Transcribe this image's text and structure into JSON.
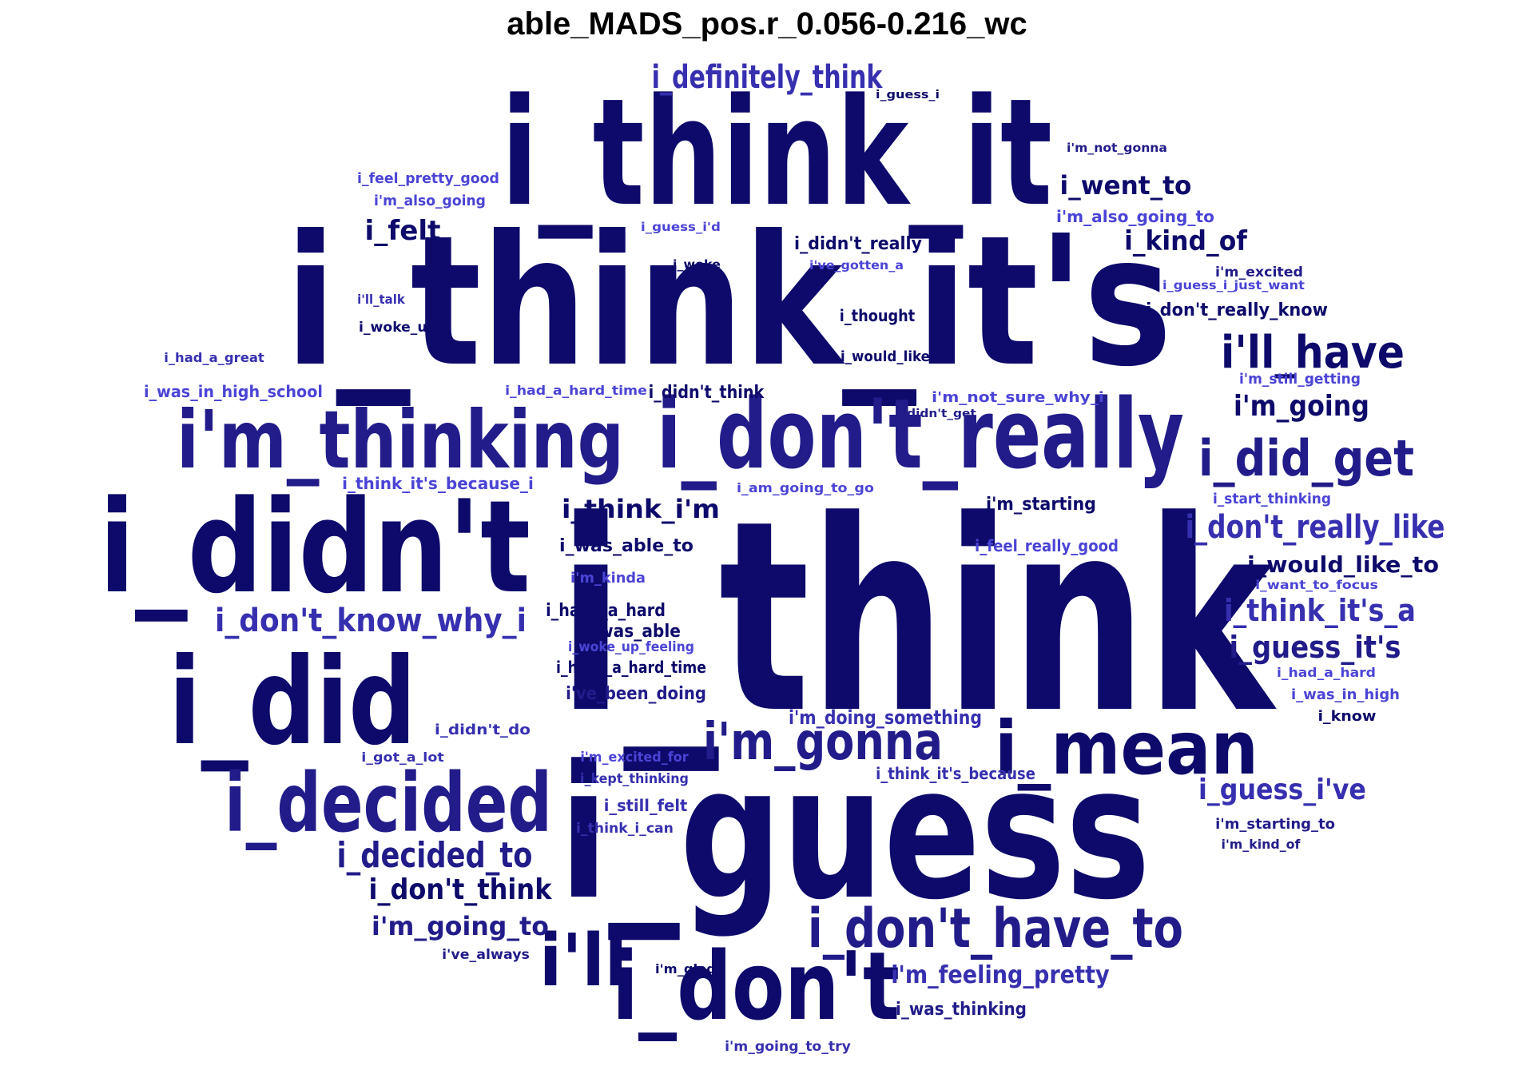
{
  "title": "able_MADS_pos.r_0.056-0.216_wc",
  "colors": {
    "c1": "#0d0a6b",
    "c2": "#211c8a",
    "c3": "#3630b0",
    "c4": "#4a44d6"
  },
  "words": [
    {
      "text": "i_think",
      "weight": 330,
      "color": "c1"
    },
    {
      "text": "i_guess",
      "weight": 230,
      "color": "c1"
    },
    {
      "text": "i_think_it's",
      "weight": 225,
      "color": "c1"
    },
    {
      "text": "i_think_it",
      "weight": 185,
      "color": "c1"
    },
    {
      "text": "i_didn't",
      "weight": 160,
      "color": "c1"
    },
    {
      "text": "i_did",
      "weight": 150,
      "color": "c1"
    },
    {
      "text": "i_don't_really",
      "weight": 120,
      "color": "c2"
    },
    {
      "text": "i_don't",
      "weight": 118,
      "color": "c1"
    },
    {
      "text": "i'm_thinking",
      "weight": 100,
      "color": "c2"
    },
    {
      "text": "i_decided",
      "weight": 102,
      "color": "c2"
    },
    {
      "text": "i_mean",
      "weight": 92,
      "color": "c1"
    },
    {
      "text": "i'll",
      "weight": 90,
      "color": "c1"
    },
    {
      "text": "i_don't_have_to",
      "weight": 68,
      "color": "c2"
    },
    {
      "text": "i'm_gonna",
      "weight": 64,
      "color": "c2"
    },
    {
      "text": "i_did_get",
      "weight": 62,
      "color": "c2"
    },
    {
      "text": "i'll_have",
      "weight": 56,
      "color": "c1"
    },
    {
      "text": "i_decided_to",
      "weight": 44,
      "color": "c2"
    },
    {
      "text": "i_definitely_think",
      "weight": 40,
      "color": "c3"
    },
    {
      "text": "i_don't_know_why_i",
      "weight": 40,
      "color": "c3"
    },
    {
      "text": "i_don't_really_like",
      "weight": 40,
      "color": "c3"
    },
    {
      "text": "i_think_it's_a",
      "weight": 38,
      "color": "c3"
    },
    {
      "text": "i_guess_it's",
      "weight": 38,
      "color": "c2"
    },
    {
      "text": "i_guess_i've",
      "weight": 36,
      "color": "c3"
    },
    {
      "text": "i_don't_think",
      "weight": 36,
      "color": "c1"
    },
    {
      "text": "i'm_going",
      "weight": 36,
      "color": "c1"
    },
    {
      "text": "i_kind_of",
      "weight": 34,
      "color": "c1"
    },
    {
      "text": "i_felt",
      "weight": 34,
      "color": "c1"
    },
    {
      "text": "i_went_to",
      "weight": 32,
      "color": "c1"
    },
    {
      "text": "i_think_i'm",
      "weight": 32,
      "color": "c1"
    },
    {
      "text": "i'm_going_to",
      "weight": 32,
      "color": "c2"
    },
    {
      "text": "i_would_like_to",
      "weight": 28,
      "color": "c1"
    },
    {
      "text": "i'm_feeling_pretty",
      "weight": 30,
      "color": "c3"
    },
    {
      "text": "i_was_able",
      "weight": 22,
      "color": "c1"
    },
    {
      "text": "i_didn't_really",
      "weight": 22,
      "color": "c1"
    },
    {
      "text": "i_have_a_hard",
      "weight": 22,
      "color": "c1"
    },
    {
      "text": "i'm_doing_something",
      "weight": 24,
      "color": "c3"
    },
    {
      "text": "i've_been_doing",
      "weight": 22,
      "color": "c2"
    },
    {
      "text": "i_was_able_to",
      "weight": 22,
      "color": "c1"
    },
    {
      "text": "i_don't_really_know",
      "weight": 22,
      "color": "c1"
    },
    {
      "text": "i'm_starting",
      "weight": 22,
      "color": "c1"
    },
    {
      "text": "i_didn't_think",
      "weight": 22,
      "color": "c1"
    },
    {
      "text": "i_was_thinking",
      "weight": 22,
      "color": "c2"
    },
    {
      "text": "i_thought",
      "weight": 20,
      "color": "c1"
    },
    {
      "text": "i_would_like",
      "weight": 18,
      "color": "c1"
    },
    {
      "text": "i_think_it's_because_i",
      "weight": 20,
      "color": "c4"
    },
    {
      "text": "i_feel_really_good",
      "weight": 20,
      "color": "c4"
    },
    {
      "text": "i_think_it's_because",
      "weight": 20,
      "color": "c3"
    },
    {
      "text": "i_still_felt",
      "weight": 20,
      "color": "c3"
    },
    {
      "text": "i_have_a_hard_time",
      "weight": 20,
      "color": "c1"
    },
    {
      "text": "i'm_also_going_to",
      "weight": 20,
      "color": "c4"
    },
    {
      "text": "i_feel_pretty_good",
      "weight": 18,
      "color": "c4"
    },
    {
      "text": "i'm_also_going",
      "weight": 18,
      "color": "c4"
    },
    {
      "text": "i_was_in_high_school",
      "weight": 20,
      "color": "c4"
    },
    {
      "text": "i_didn't_do",
      "weight": 18,
      "color": "c3"
    },
    {
      "text": "i_know",
      "weight": 18,
      "color": "c1"
    },
    {
      "text": "i'm_starting_to",
      "weight": 18,
      "color": "c2"
    },
    {
      "text": "i'm_not_sure_why_i",
      "weight": 18,
      "color": "c4"
    },
    {
      "text": "i_start_thinking",
      "weight": 18,
      "color": "c4"
    },
    {
      "text": "i_was_in_high",
      "weight": 18,
      "color": "c4"
    },
    {
      "text": "i'm_kinda",
      "weight": 18,
      "color": "c4"
    },
    {
      "text": "i_woke_up_feeling",
      "weight": 17,
      "color": "c4"
    },
    {
      "text": "i'm_excited_for",
      "weight": 17,
      "color": "c4"
    },
    {
      "text": "i_kept_thinking",
      "weight": 17,
      "color": "c3"
    },
    {
      "text": "i_think_i_can",
      "weight": 17,
      "color": "c3"
    },
    {
      "text": "i_woke_up",
      "weight": 17,
      "color": "c1"
    },
    {
      "text": "i_had_a_great",
      "weight": 16,
      "color": "c3"
    },
    {
      "text": "i'm_still_getting",
      "weight": 18,
      "color": "c4"
    },
    {
      "text": "i'm_excited",
      "weight": 17,
      "color": "c2"
    },
    {
      "text": "i'm_going_to_try",
      "weight": 17,
      "color": "c3"
    },
    {
      "text": "i'm_kind_of",
      "weight": 16,
      "color": "c2"
    },
    {
      "text": "i'm_glad",
      "weight": 16,
      "color": "c1"
    },
    {
      "text": "i've_always",
      "weight": 17,
      "color": "c2"
    },
    {
      "text": "i_got_a_lot",
      "weight": 16,
      "color": "c3"
    },
    {
      "text": "i_had_a_hard",
      "weight": 16,
      "color": "c4"
    },
    {
      "text": "i_had_a_hard_time",
      "weight": 16,
      "color": "c4"
    },
    {
      "text": "i_am_going_to_go",
      "weight": 16,
      "color": "c4"
    },
    {
      "text": "i'll_talk",
      "weight": 16,
      "color": "c3"
    },
    {
      "text": "i_woke",
      "weight": 15,
      "color": "c1"
    },
    {
      "text": "i've_gotten_a",
      "weight": 15,
      "color": "c4"
    },
    {
      "text": "i_guess_i'd",
      "weight": 15,
      "color": "c4"
    },
    {
      "text": "i_guess_i_just_want",
      "weight": 15,
      "color": "c4"
    },
    {
      "text": "i_want_to_focus",
      "weight": 15,
      "color": "c4"
    },
    {
      "text": "i'm_not_gonna",
      "weight": 15,
      "color": "c2"
    },
    {
      "text": "i_guess_i",
      "weight": 14,
      "color": "c1"
    },
    {
      "text": "i_didn't_get",
      "weight": 14,
      "color": "c2"
    }
  ]
}
